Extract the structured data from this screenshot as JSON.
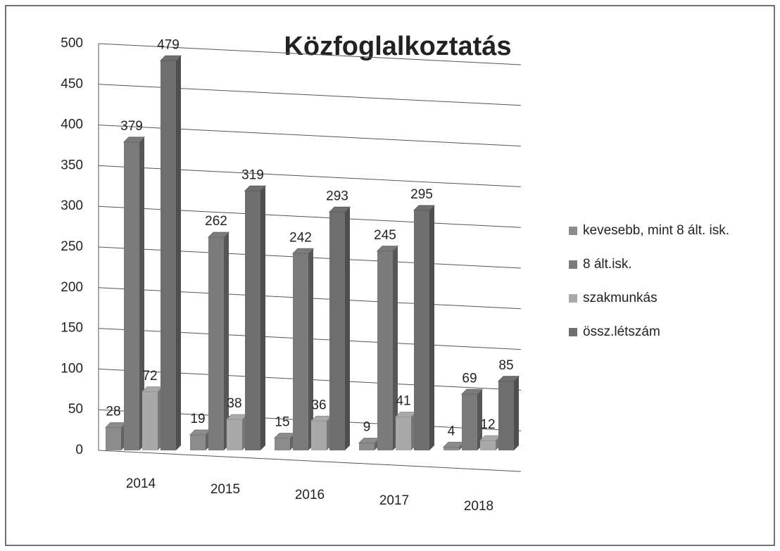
{
  "chart_data": {
    "type": "bar",
    "title": "Közfoglalkoztatás",
    "categories": [
      "2014",
      "2015",
      "2016",
      "2017",
      "2018"
    ],
    "series": [
      {
        "name": "kevesebb, mint 8 ált. isk.",
        "color": "#8c8c8c",
        "values": [
          28,
          19,
          15,
          9,
          4
        ]
      },
      {
        "name": "8 ált.isk.",
        "color": "#7b7b7b",
        "values": [
          379,
          262,
          242,
          245,
          69
        ]
      },
      {
        "name": "szakmunkás",
        "color": "#a9a9a9",
        "values": [
          72,
          38,
          36,
          41,
          12
        ]
      },
      {
        "name": "össz.létszám",
        "color": "#6f6f6f",
        "values": [
          479,
          319,
          293,
          295,
          85
        ]
      }
    ],
    "ylim": [
      0,
      500
    ],
    "yticks": [
      0,
      50,
      100,
      150,
      200,
      250,
      300,
      350,
      400,
      450,
      500
    ],
    "grid": true,
    "legend": "right"
  }
}
